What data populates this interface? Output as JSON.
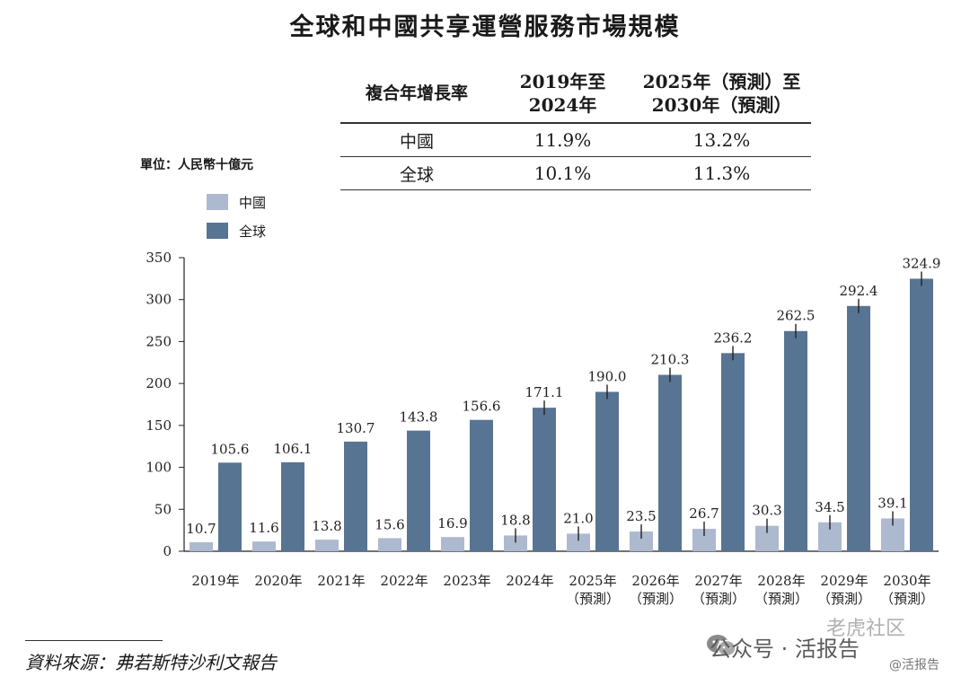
{
  "title": "全球和中國共享運營服務市場規模",
  "cagr_table": {
    "header": [
      "複合年增長率",
      "2019年至 2024年",
      "2025年（預測）至 2030年（預測）"
    ],
    "header_lines": [
      [
        "複合年增長率"
      ],
      [
        "2019年至",
        "2024年"
      ],
      [
        "2025年（預測）至",
        "2030年（預測）"
      ]
    ],
    "rows": [
      {
        "label": "中國",
        "v1": "11.9%",
        "v2": "13.2%"
      },
      {
        "label": "全球",
        "v1": "10.1%",
        "v2": "11.3%"
      }
    ]
  },
  "unit_label": "單位：人民幣十億元",
  "source": "資料來源：弗若斯特沙利文報告",
  "watermark": {
    "line1": "老虎社区",
    "line2": "公众号 · 活报告",
    "line3": "@活报告"
  },
  "colors": {
    "china": "#adb9cf",
    "global": "#587493",
    "axis": "#222222"
  },
  "chart_data": {
    "type": "bar",
    "categories": [
      "2019年",
      "2020年",
      "2021年",
      "2022年",
      "2023年",
      "2024年",
      "2025年（預測）",
      "2026年（預測）",
      "2027年（預測）",
      "2028年（預測）",
      "2029年（預測）",
      "2030年（預測）"
    ],
    "category_lines": [
      [
        "2019年"
      ],
      [
        "2020年"
      ],
      [
        "2021年"
      ],
      [
        "2022年"
      ],
      [
        "2023年"
      ],
      [
        "2024年"
      ],
      [
        "2025年",
        "（預測）"
      ],
      [
        "2026年",
        "（預測）"
      ],
      [
        "2027年",
        "（預測）"
      ],
      [
        "2028年",
        "（預測）"
      ],
      [
        "2029年",
        "（預測）"
      ],
      [
        "2030年",
        "（預測）"
      ]
    ],
    "series": [
      {
        "name": "中國",
        "values": [
          10.7,
          11.6,
          13.8,
          15.6,
          16.9,
          18.8,
          21.0,
          23.5,
          26.7,
          30.3,
          34.5,
          39.1
        ]
      },
      {
        "name": "全球",
        "values": [
          105.6,
          106.1,
          130.7,
          143.8,
          156.6,
          171.1,
          190.0,
          210.3,
          236.2,
          262.5,
          292.4,
          324.9
        ]
      }
    ],
    "value_labels": [
      [
        "10.7",
        "11.6",
        "13.8",
        "15.6",
        "16.9",
        "18.8",
        "21.0",
        "23.5",
        "26.7",
        "30.3",
        "34.5",
        "39.1"
      ],
      [
        "105.6",
        "106.1",
        "130.7",
        "143.8",
        "156.6",
        "171.1",
        "190.0",
        "210.3",
        "236.2",
        "262.5",
        "292.4",
        "324.9"
      ]
    ],
    "yticks": [
      "0",
      "50",
      "100",
      "150",
      "200",
      "250",
      "300",
      "350"
    ],
    "ylim": [
      0,
      350
    ],
    "legend_position": "top-left",
    "grid": false
  }
}
